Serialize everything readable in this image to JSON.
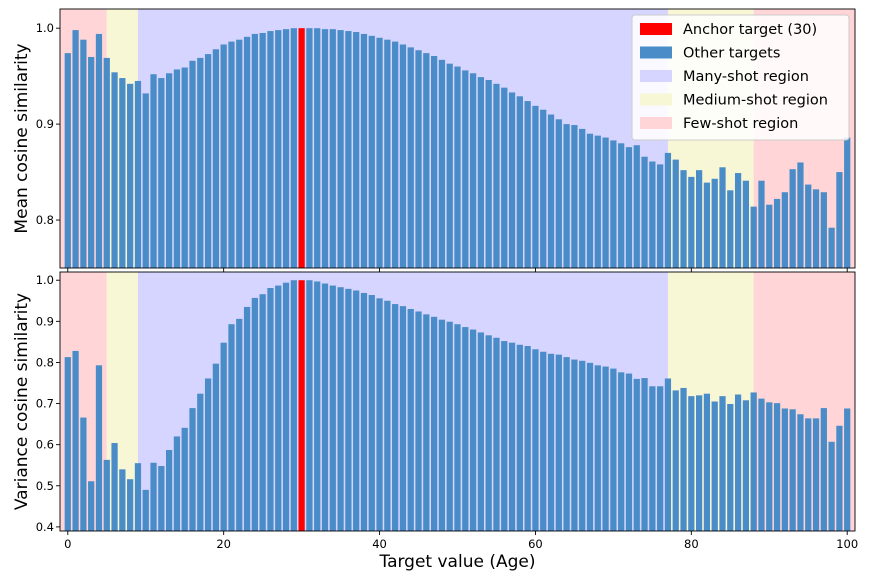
{
  "chart_data": {
    "type": "bar",
    "shared_x": {
      "label": "Target value (Age)",
      "ticks": [
        0,
        20,
        40,
        60,
        80,
        100
      ],
      "range": [
        -1,
        101
      ]
    },
    "anchor": 30,
    "regions": [
      {
        "name": "Few-shot region",
        "from": -1,
        "to": 5,
        "color": "#ffd5d8"
      },
      {
        "name": "Medium-shot region",
        "from": 5,
        "to": 9,
        "color": "#f7f7d5"
      },
      {
        "name": "Many-shot region",
        "from": 9,
        "to": 77,
        "color": "#d5d5ff"
      },
      {
        "name": "Medium-shot region",
        "from": 77,
        "to": 88,
        "color": "#f7f7d5"
      },
      {
        "name": "Few-shot region",
        "from": 88,
        "to": 101,
        "color": "#ffd5d8"
      }
    ],
    "colors": {
      "anchor": "#ff0000",
      "bars": "#4a8cc7",
      "many": "#d5d5ff",
      "medium": "#f7f7d5",
      "few": "#ffd5d8"
    },
    "legend": {
      "placement": "top-right",
      "entries": [
        {
          "label": "Anchor target (30)",
          "color": "#ff0000"
        },
        {
          "label": "Other targets",
          "color": "#4a8cc7"
        },
        {
          "label": "Many-shot region",
          "color": "#d5d5ff"
        },
        {
          "label": "Medium-shot region",
          "color": "#f7f7d5"
        },
        {
          "label": "Few-shot region",
          "color": "#ffd5d8"
        }
      ]
    },
    "panels": [
      {
        "ylabel": "Mean cosine similarity",
        "ylim": [
          0.75,
          1.02
        ],
        "yticks": [
          0.8,
          0.9,
          1.0
        ],
        "ytick_labels": [
          "0.8",
          "0.9",
          "1.0"
        ],
        "x": [
          0,
          1,
          2,
          3,
          4,
          5,
          6,
          7,
          8,
          9,
          10,
          11,
          12,
          13,
          14,
          15,
          16,
          17,
          18,
          19,
          20,
          21,
          22,
          23,
          24,
          25,
          26,
          27,
          28,
          29,
          30,
          31,
          32,
          33,
          34,
          35,
          36,
          37,
          38,
          39,
          40,
          41,
          42,
          43,
          44,
          45,
          46,
          47,
          48,
          49,
          50,
          51,
          52,
          53,
          54,
          55,
          56,
          57,
          58,
          59,
          60,
          61,
          62,
          63,
          64,
          65,
          66,
          67,
          68,
          69,
          70,
          71,
          72,
          73,
          74,
          75,
          76,
          77,
          78,
          79,
          80,
          81,
          82,
          83,
          84,
          85,
          86,
          87,
          88,
          89,
          90,
          91,
          92,
          93,
          94,
          95,
          96,
          97,
          98,
          99,
          100
        ],
        "values": [
          0.974,
          0.998,
          0.988,
          0.97,
          0.994,
          0.969,
          0.954,
          0.948,
          0.942,
          0.945,
          0.932,
          0.952,
          0.948,
          0.953,
          0.957,
          0.959,
          0.966,
          0.969,
          0.973,
          0.978,
          0.983,
          0.986,
          0.988,
          0.991,
          0.994,
          0.995,
          0.997,
          0.998,
          0.999,
          1.0,
          1.0,
          1.0,
          1.0,
          0.999,
          0.999,
          0.998,
          0.997,
          0.996,
          0.994,
          0.992,
          0.99,
          0.988,
          0.986,
          0.983,
          0.98,
          0.977,
          0.974,
          0.971,
          0.967,
          0.963,
          0.96,
          0.956,
          0.953,
          0.949,
          0.946,
          0.942,
          0.938,
          0.933,
          0.929,
          0.924,
          0.919,
          0.915,
          0.91,
          0.905,
          0.9,
          0.899,
          0.895,
          0.89,
          0.888,
          0.886,
          0.883,
          0.88,
          0.876,
          0.878,
          0.866,
          0.861,
          0.858,
          0.87,
          0.863,
          0.852,
          0.845,
          0.852,
          0.839,
          0.843,
          0.855,
          0.831,
          0.849,
          0.841,
          0.814,
          0.841,
          0.816,
          0.822,
          0.829,
          0.853,
          0.86,
          0.837,
          0.832,
          0.829,
          0.792,
          0.85,
          0.886
        ]
      },
      {
        "ylabel": "Variance cosine similarity",
        "ylim": [
          0.39,
          1.02
        ],
        "yticks": [
          0.4,
          0.5,
          0.6,
          0.7,
          0.8,
          0.9,
          1.0
        ],
        "ytick_labels": [
          "0.4",
          "0.5",
          "0.6",
          "0.7",
          "0.8",
          "0.9",
          "1.0"
        ],
        "x": [
          0,
          1,
          2,
          3,
          4,
          5,
          6,
          7,
          8,
          9,
          10,
          11,
          12,
          13,
          14,
          15,
          16,
          17,
          18,
          19,
          20,
          21,
          22,
          23,
          24,
          25,
          26,
          27,
          28,
          29,
          30,
          31,
          32,
          33,
          34,
          35,
          36,
          37,
          38,
          39,
          40,
          41,
          42,
          43,
          44,
          45,
          46,
          47,
          48,
          49,
          50,
          51,
          52,
          53,
          54,
          55,
          56,
          57,
          58,
          59,
          60,
          61,
          62,
          63,
          64,
          65,
          66,
          67,
          68,
          69,
          70,
          71,
          72,
          73,
          74,
          75,
          76,
          77,
          78,
          79,
          80,
          81,
          82,
          83,
          84,
          85,
          86,
          87,
          88,
          89,
          90,
          91,
          92,
          93,
          94,
          95,
          96,
          97,
          98,
          99,
          100
        ],
        "values": [
          0.813,
          0.828,
          0.666,
          0.511,
          0.793,
          0.563,
          0.604,
          0.54,
          0.516,
          0.555,
          0.49,
          0.556,
          0.548,
          0.587,
          0.62,
          0.641,
          0.689,
          0.724,
          0.761,
          0.797,
          0.848,
          0.893,
          0.906,
          0.935,
          0.957,
          0.966,
          0.981,
          0.987,
          0.994,
          1.0,
          1.0,
          1.0,
          0.997,
          0.992,
          0.987,
          0.983,
          0.979,
          0.975,
          0.969,
          0.964,
          0.956,
          0.95,
          0.942,
          0.937,
          0.93,
          0.924,
          0.917,
          0.911,
          0.904,
          0.899,
          0.893,
          0.886,
          0.88,
          0.873,
          0.866,
          0.86,
          0.852,
          0.848,
          0.843,
          0.84,
          0.832,
          0.826,
          0.821,
          0.819,
          0.813,
          0.807,
          0.804,
          0.799,
          0.793,
          0.79,
          0.785,
          0.776,
          0.773,
          0.76,
          0.762,
          0.742,
          0.742,
          0.761,
          0.732,
          0.738,
          0.718,
          0.72,
          0.724,
          0.705,
          0.718,
          0.699,
          0.722,
          0.708,
          0.727,
          0.712,
          0.703,
          0.701,
          0.688,
          0.686,
          0.674,
          0.664,
          0.664,
          0.689,
          0.607,
          0.646,
          0.688
        ]
      }
    ]
  }
}
